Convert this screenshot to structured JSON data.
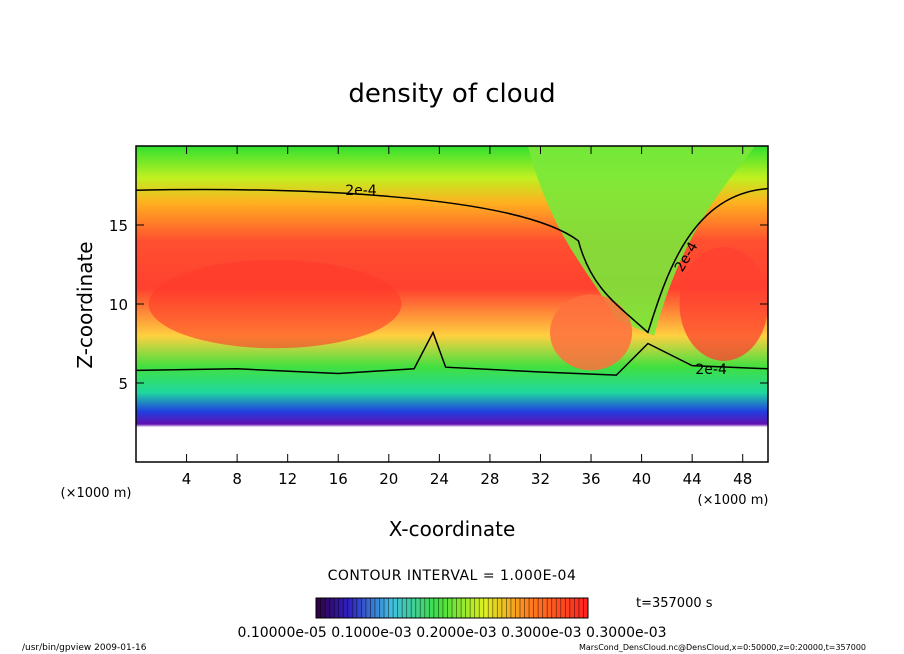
{
  "chart_data": {
    "type": "heatmap",
    "title": "density of cloud",
    "xlabel": "X-coordinate",
    "ylabel": "Z-coordinate",
    "x_unit": "(×1000 m)",
    "y_unit": "(×1000 m)",
    "xlim": [
      0,
      50
    ],
    "ylim": [
      0,
      20
    ],
    "x_ticks": [
      4,
      8,
      12,
      16,
      20,
      24,
      28,
      32,
      36,
      40,
      44,
      48
    ],
    "y_ticks": [
      5,
      10,
      15
    ],
    "contour_label": "2e-4",
    "contour_interval_text": "CONTOUR INTERVAL = 1.000E-04",
    "time_text": "t=357000 s",
    "colorbar_labels_text": "0.10000e-05 0.1000e-03 0.2000e-03 0.3000e-03 0.3000e-03",
    "grid": false,
    "legend": "colorbar-bottom"
  },
  "footer": {
    "left": "/usr/bin/gpview  2009-01-16",
    "right": "MarsCond_DensCloud.nc@DensCloud,x=0:50000,z=0:20000,t=357000"
  },
  "colors": {
    "background": "#ffffff",
    "high": "#ff3020",
    "mid": "#ffe030",
    "low": "#20e020",
    "edge": "#7010b0"
  }
}
